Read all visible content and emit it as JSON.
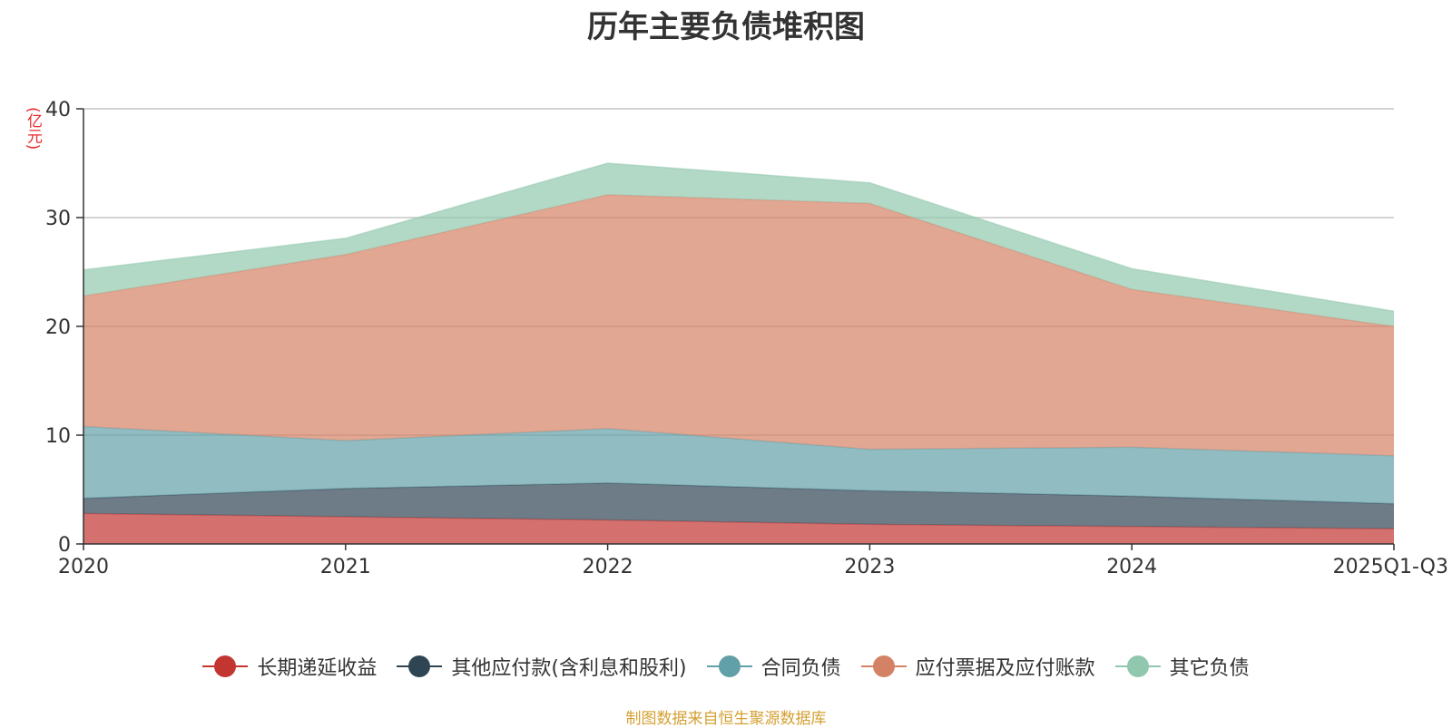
{
  "chart_data": {
    "type": "area",
    "stacked": true,
    "title": "历年主要负债堆积图",
    "ylabel": "(亿元)",
    "xlabel": "",
    "ylim": [
      0,
      40
    ],
    "yticks": [
      0,
      10,
      20,
      30,
      40
    ],
    "categories": [
      "2020",
      "2021",
      "2022",
      "2023",
      "2024",
      "2025Q1-Q3"
    ],
    "series": [
      {
        "name": "长期递延收益",
        "color": "#c23531",
        "values": [
          2.8,
          2.5,
          2.2,
          1.8,
          1.6,
          1.4
        ]
      },
      {
        "name": "其他应付款(含利息和股利)",
        "color": "#2f4554",
        "values": [
          1.4,
          2.6,
          3.4,
          3.1,
          2.8,
          2.3
        ]
      },
      {
        "name": "合同负债",
        "color": "#61a0a8",
        "values": [
          6.6,
          4.4,
          5.0,
          3.8,
          4.5,
          4.4
        ]
      },
      {
        "name": "应付票据及应付账款",
        "color": "#d48265",
        "values": [
          12.0,
          17.1,
          21.5,
          22.6,
          14.5,
          11.9
        ]
      },
      {
        "name": "其它负债",
        "color": "#91c7ae",
        "values": [
          2.4,
          1.5,
          2.9,
          1.9,
          1.9,
          1.4
        ]
      }
    ],
    "legend_position": "bottom",
    "grid": true,
    "source": "制图数据来自恒生聚源数据库"
  }
}
